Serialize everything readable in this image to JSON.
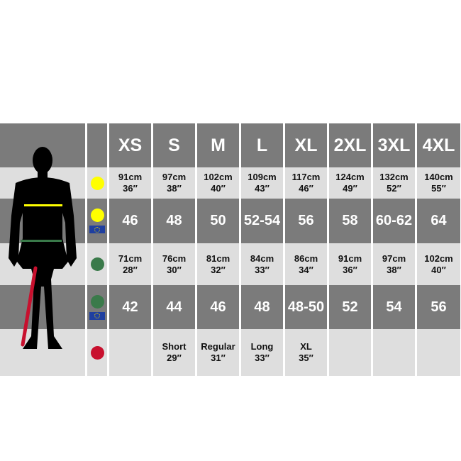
{
  "colors": {
    "chest": "#ffff00",
    "waist": "#3a7a4a",
    "inside_leg": "#c8102e",
    "eu_flag": "#1f3fa0"
  },
  "sizes": [
    "XS",
    "S",
    "M",
    "L",
    "XL",
    "2XL",
    "3XL",
    "4XL"
  ],
  "rows": [
    {
      "icon": "chest-dot-icon",
      "eu": false,
      "style": "small",
      "values": [
        [
          "91cm",
          "36″"
        ],
        [
          "97cm",
          "38″"
        ],
        [
          "102cm",
          "40″"
        ],
        [
          "109cm",
          "43″"
        ],
        [
          "117cm",
          "46″"
        ],
        [
          "124cm",
          "49″"
        ],
        [
          "132cm",
          "52″"
        ],
        [
          "140cm",
          "55″"
        ]
      ]
    },
    {
      "icon": "chest-dot-icon",
      "eu": true,
      "style": "big",
      "values": [
        [
          "46"
        ],
        [
          "48"
        ],
        [
          "50"
        ],
        [
          "52-54"
        ],
        [
          "56"
        ],
        [
          "58"
        ],
        [
          "60-62"
        ],
        [
          "64"
        ]
      ]
    },
    {
      "icon": "waist-dot-icon",
      "eu": false,
      "style": "small",
      "values": [
        [
          "71cm",
          "28″"
        ],
        [
          "76cm",
          "30″"
        ],
        [
          "81cm",
          "32″"
        ],
        [
          "84cm",
          "33″"
        ],
        [
          "86cm",
          "34″"
        ],
        [
          "91cm",
          "36″"
        ],
        [
          "97cm",
          "38″"
        ],
        [
          "102cm",
          "40″"
        ]
      ]
    },
    {
      "icon": "waist-dot-icon",
      "eu": true,
      "style": "big",
      "values": [
        [
          "42"
        ],
        [
          "44"
        ],
        [
          "46"
        ],
        [
          "48"
        ],
        [
          "48-50"
        ],
        [
          "52"
        ],
        [
          "54"
        ],
        [
          "56"
        ]
      ]
    },
    {
      "icon": "inside-leg-dot-icon",
      "eu": false,
      "style": "small",
      "values": [
        [],
        [
          "Short",
          "29″"
        ],
        [
          "Regular",
          "31″"
        ],
        [
          "Long",
          "33″"
        ],
        [
          "XL",
          "35″"
        ],
        [],
        [],
        []
      ]
    }
  ]
}
